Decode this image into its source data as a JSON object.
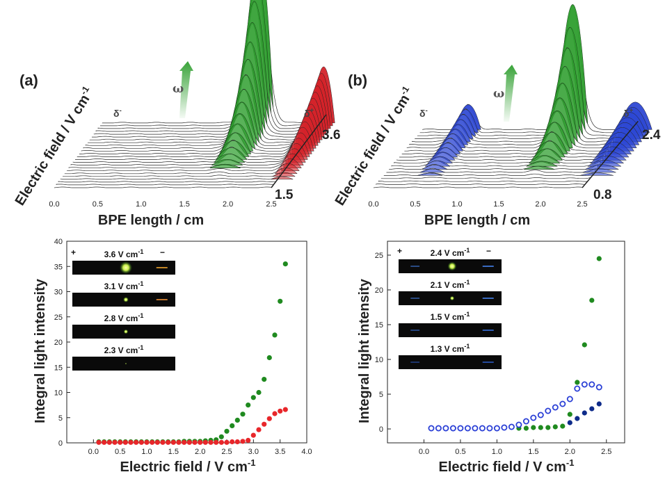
{
  "panels": [
    {
      "id": "a",
      "label": "(a)",
      "waterfall": {
        "xlabel": "BPE length / cm",
        "ylabel": "Electric field / V cm",
        "ylabel_sup": "-1",
        "xticks": [
          "0.0",
          "0.5",
          "1.0",
          "1.5",
          "2.0",
          "2.5"
        ],
        "field_low": "1.5",
        "field_high": "3.6",
        "delta_minus": "δ",
        "delta_minus_sup": "-",
        "delta_plus": "δ",
        "delta_plus_sup": "+",
        "omega": "ω",
        "traces": 24,
        "center_color": "#2e9e2e",
        "side_color": "#d4232a",
        "left_side_visible": false
      }
    },
    {
      "id": "b",
      "label": "(b)",
      "waterfall": {
        "xlabel": "BPE length / cm",
        "ylabel": "Electric field / V cm",
        "ylabel_sup": "-1",
        "xticks": [
          "0.0",
          "0.5",
          "1.0",
          "1.5",
          "2.0",
          "2.5"
        ],
        "field_low": "0.8",
        "field_high": "2.4",
        "delta_minus": "δ",
        "delta_minus_sup": "-",
        "delta_plus": "δ",
        "delta_plus_sup": "+",
        "omega": "ω",
        "traces": 20,
        "center_color": "#2e9e2e",
        "side_color": "#2e48d4",
        "left_side_visible": true
      }
    }
  ],
  "chart_data": [
    {
      "type": "scatter",
      "panel": "a",
      "xlabel": "Electric field / V cm",
      "xlabel_sup": "-1",
      "ylabel": "Integral light intensity",
      "xlim": [
        -0.5,
        4.0
      ],
      "ylim": [
        0,
        40
      ],
      "xticks": [
        "0.0",
        "0.5",
        "1.0",
        "1.5",
        "2.0",
        "2.5",
        "3.0",
        "3.5",
        "4.0"
      ],
      "yticks": [
        "0",
        "5",
        "10",
        "15",
        "20",
        "25",
        "30",
        "35",
        "40"
      ],
      "series": [
        {
          "color": "#1f8a1f",
          "filled": true,
          "x": [
            0.1,
            0.2,
            0.3,
            0.4,
            0.5,
            0.6,
            0.7,
            0.8,
            0.9,
            1.0,
            1.1,
            1.2,
            1.3,
            1.4,
            1.5,
            1.6,
            1.7,
            1.8,
            1.9,
            2.0,
            2.1,
            2.2,
            2.3,
            2.4,
            2.5,
            2.6,
            2.7,
            2.8,
            2.9,
            3.0,
            3.1,
            3.2,
            3.3,
            3.4,
            3.5,
            3.6
          ],
          "y": [
            0.2,
            0.2,
            0.2,
            0.2,
            0.2,
            0.2,
            0.2,
            0.2,
            0.2,
            0.2,
            0.2,
            0.2,
            0.2,
            0.2,
            0.2,
            0.2,
            0.3,
            0.3,
            0.3,
            0.3,
            0.4,
            0.5,
            0.6,
            1.2,
            2.3,
            3.4,
            4.5,
            5.7,
            7.5,
            9.0,
            10.0,
            12.6,
            16.9,
            21.4,
            28.1,
            35.5
          ]
        },
        {
          "color": "#e8262a",
          "filled": true,
          "x": [
            0.1,
            0.2,
            0.3,
            0.4,
            0.5,
            0.6,
            0.7,
            0.8,
            0.9,
            1.0,
            1.1,
            1.2,
            1.3,
            1.4,
            1.5,
            1.6,
            1.7,
            1.8,
            1.9,
            2.0,
            2.1,
            2.2,
            2.3,
            2.4,
            2.5,
            2.6,
            2.7,
            2.8,
            2.9,
            3.0,
            3.1,
            3.2,
            3.3,
            3.4,
            3.5,
            3.6
          ],
          "y": [
            0.1,
            0.1,
            0.1,
            0.1,
            0.1,
            0.1,
            0.1,
            0.1,
            0.1,
            0.1,
            0.1,
            0.1,
            0.1,
            0.1,
            0.1,
            0.1,
            0.1,
            0.1,
            0.1,
            0.1,
            0.1,
            0.1,
            0.1,
            0.1,
            0.1,
            0.2,
            0.2,
            0.3,
            0.5,
            1.5,
            2.6,
            3.7,
            4.8,
            5.8,
            6.3,
            6.6
          ]
        }
      ],
      "inset": {
        "plus": "+",
        "minus": "−",
        "frames": [
          {
            "label": "3.6 V cm",
            "sup": "-1",
            "green_spot": 7,
            "side_spot": true,
            "side_color": "#ffb030"
          },
          {
            "label": "3.1 V cm",
            "sup": "-1",
            "green_spot": 3,
            "side_spot": true,
            "side_color": "#ff9a3a"
          },
          {
            "label": "2.8 V cm",
            "sup": "-1",
            "green_spot": 2.5,
            "side_spot": false,
            "side_color": ""
          },
          {
            "label": "2.3 V cm",
            "sup": "-1",
            "green_spot": 0.8,
            "side_spot": false,
            "side_color": ""
          }
        ]
      }
    },
    {
      "type": "scatter",
      "panel": "b",
      "xlabel": "Electric field / V cm",
      "xlabel_sup": "-1",
      "ylabel": "Integral light intensity",
      "xlim": [
        -0.5,
        2.75
      ],
      "ylim": [
        -2,
        27
      ],
      "xticks": [
        "0.0",
        "0.5",
        "1.0",
        "1.5",
        "2.0",
        "2.5"
      ],
      "yticks": [
        "0",
        "5",
        "10",
        "15",
        "20",
        "25"
      ],
      "series": [
        {
          "color": "#1f8a1f",
          "filled": true,
          "x": [
            1.3,
            1.4,
            1.5,
            1.6,
            1.7,
            1.8,
            1.9,
            2.0,
            2.1,
            2.2,
            2.3,
            2.4
          ],
          "y": [
            0.1,
            0.1,
            0.2,
            0.2,
            0.2,
            0.3,
            0.4,
            2.1,
            6.7,
            12.1,
            18.5,
            24.5
          ]
        },
        {
          "color": "#0e2b8a",
          "filled": true,
          "x": [
            2.0,
            2.1,
            2.2,
            2.3,
            2.4
          ],
          "y": [
            0.9,
            1.5,
            2.3,
            2.9,
            3.6
          ]
        },
        {
          "color": "#2a3fd6",
          "filled": false,
          "x": [
            0.1,
            0.2,
            0.3,
            0.4,
            0.5,
            0.6,
            0.7,
            0.8,
            0.9,
            1.0,
            1.1,
            1.2,
            1.3,
            1.4,
            1.5,
            1.6,
            1.7,
            1.8,
            1.9,
            2.0,
            2.1,
            2.2,
            2.3,
            2.4
          ],
          "y": [
            0.1,
            0.1,
            0.1,
            0.1,
            0.1,
            0.1,
            0.1,
            0.1,
            0.1,
            0.1,
            0.2,
            0.3,
            0.6,
            1.1,
            1.6,
            2.0,
            2.6,
            3.1,
            3.6,
            4.3,
            5.8,
            6.4,
            6.4,
            6.0
          ]
        }
      ],
      "inset": {
        "plus": "+",
        "minus": "−",
        "frames": [
          {
            "label": "2.4 V cm",
            "sup": "-1",
            "green_spot": 5,
            "side_spot": true,
            "side_color": "#4a8cff"
          },
          {
            "label": "2.1 V cm",
            "sup": "-1",
            "green_spot": 2.5,
            "side_spot": true,
            "side_color": "#4a8cff"
          },
          {
            "label": "1.5 V cm",
            "sup": "-1",
            "green_spot": 0,
            "side_spot": true,
            "side_color": "#3b78ee"
          },
          {
            "label": "1.3 V cm",
            "sup": "-1",
            "green_spot": 0,
            "side_spot": true,
            "side_color": "#2e5fcc"
          }
        ]
      }
    }
  ]
}
